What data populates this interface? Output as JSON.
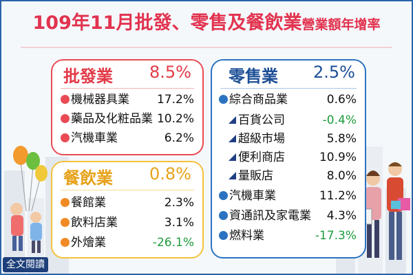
{
  "title": {
    "main": "109年11月批發、零售及餐飲業",
    "suffix": "營業額年增率"
  },
  "colors": {
    "red": "#e94a54",
    "yellow": "#f4c13a",
    "blue": "#2b73c0",
    "title": "#e2334f",
    "negative": "#1d9b3c"
  },
  "wholesale": {
    "name": "批發業",
    "value": "8.5%",
    "items": [
      {
        "label": "機械器具業",
        "value": "17.2%"
      },
      {
        "label": "藥品及化粧品業",
        "value": "10.2%"
      },
      {
        "label": "汽機車業",
        "value": "6.2%"
      }
    ]
  },
  "food": {
    "name": "餐飲業",
    "value": "0.8%",
    "items": [
      {
        "label": "餐館業",
        "value": "2.3%"
      },
      {
        "label": "飲料店業",
        "value": "3.1%"
      },
      {
        "label": "外燴業",
        "value": "-26.1%"
      }
    ]
  },
  "retail": {
    "name": "零售業",
    "value": "2.5%",
    "items": [
      {
        "label": "綜合商品業",
        "value": "0.6%"
      },
      {
        "label": "百貨公司",
        "value": "-0.4%"
      },
      {
        "label": "超級市場",
        "value": "5.8%"
      },
      {
        "label": "便利商店",
        "value": "10.9%"
      },
      {
        "label": "量販店",
        "value": "8.0%"
      },
      {
        "label": "汽機車業",
        "value": "11.2%"
      },
      {
        "label": "資通訊及家電業",
        "value": "4.3%"
      },
      {
        "label": "燃料業",
        "value": "-17.3%"
      }
    ]
  },
  "read_all": "全文閱讀"
}
